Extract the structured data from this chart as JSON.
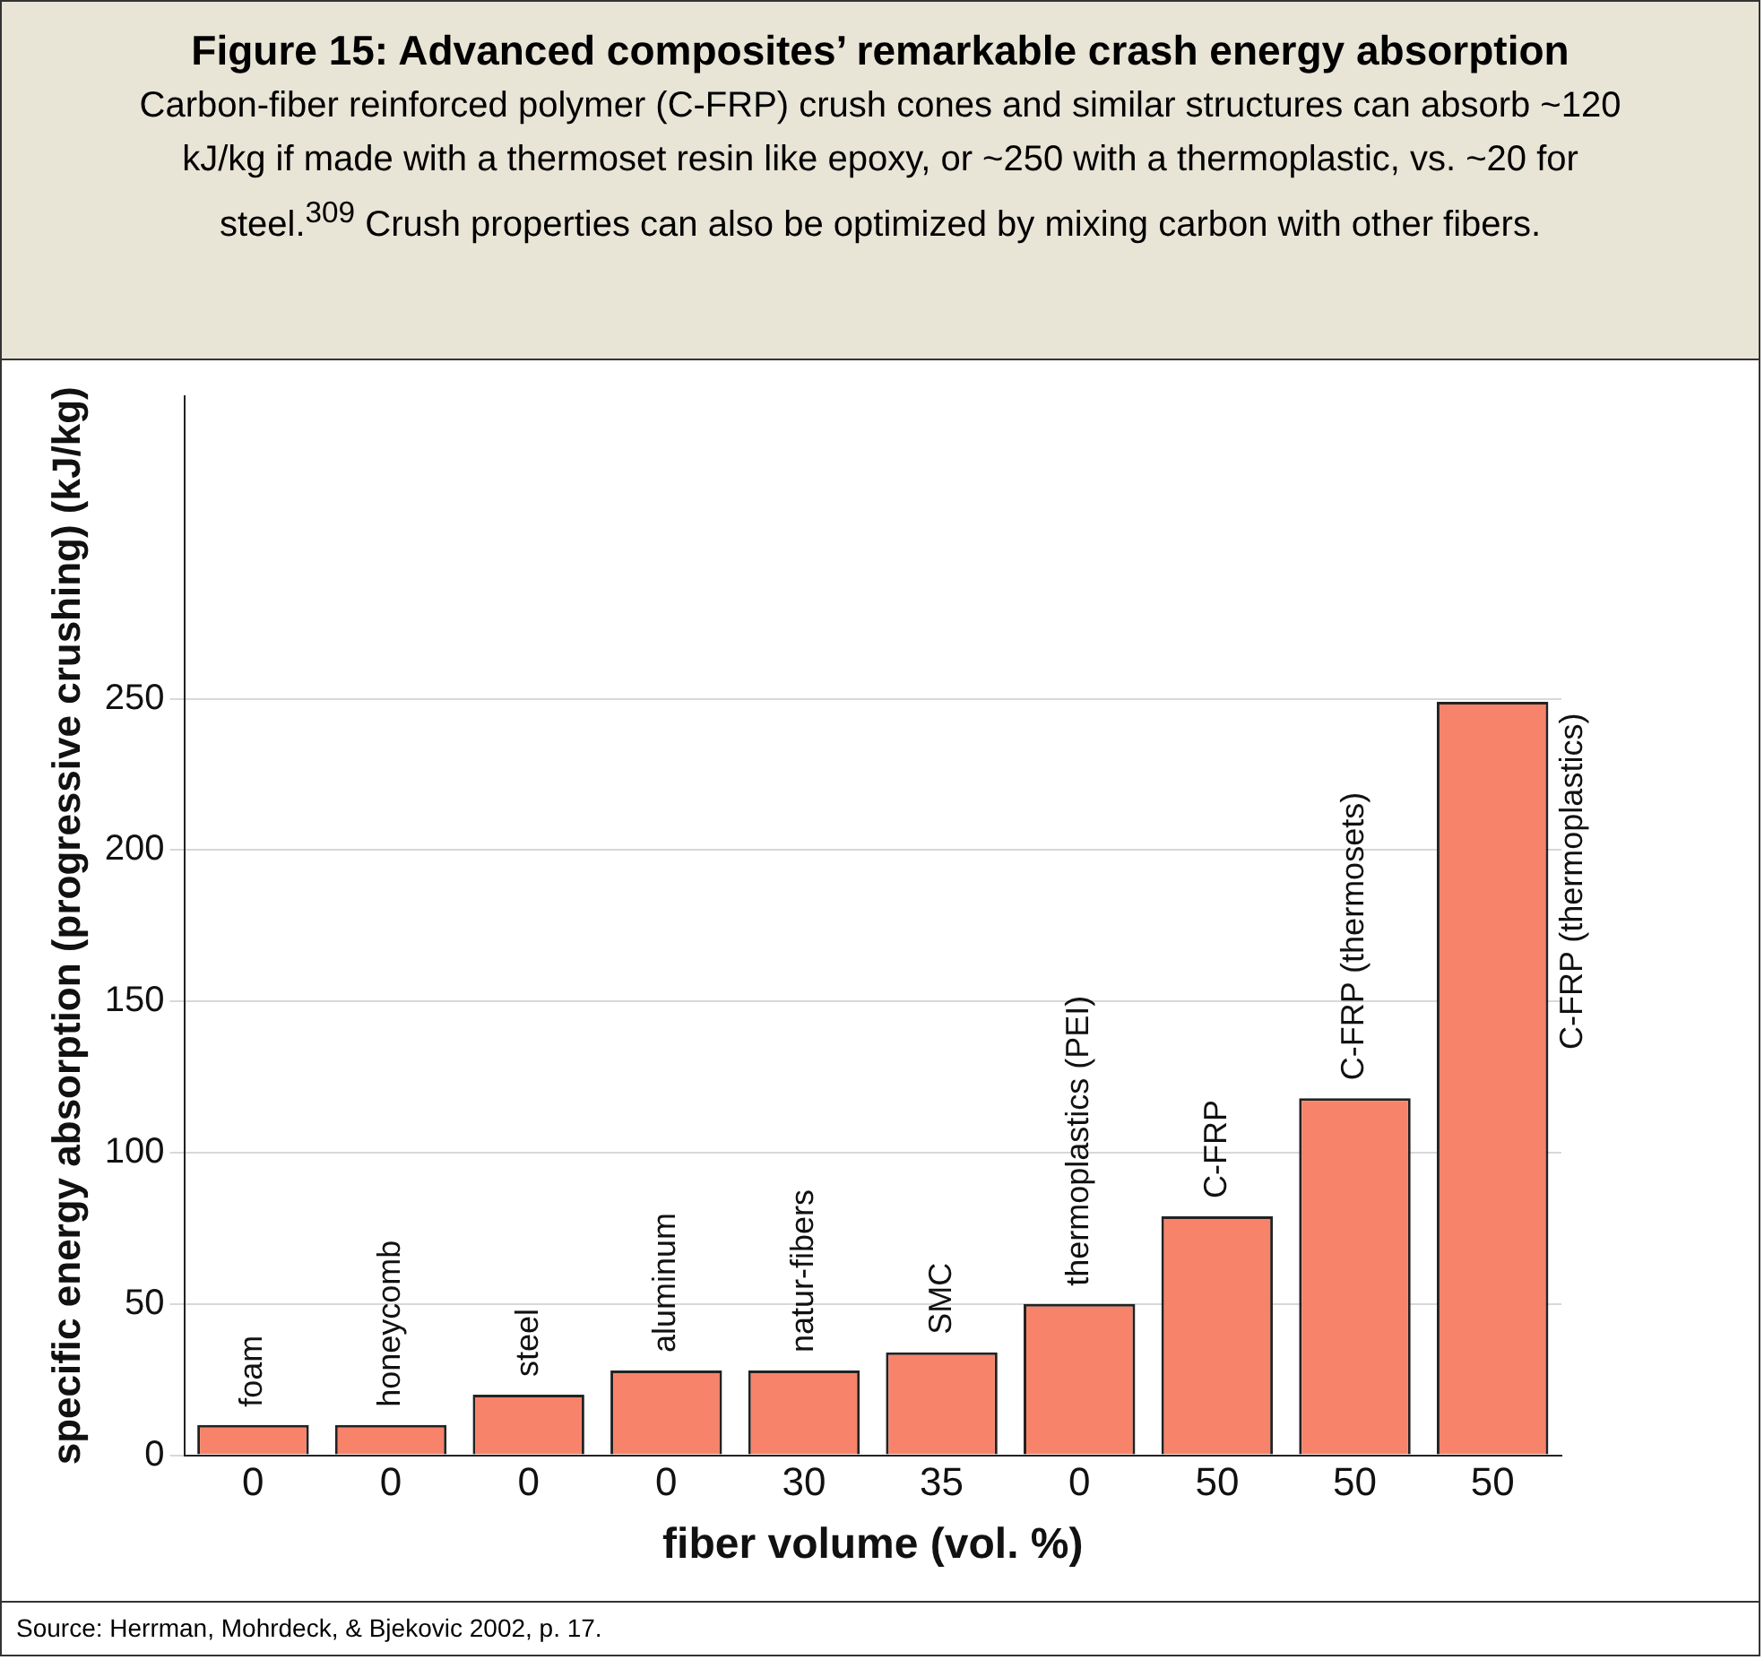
{
  "chart_data": {
    "type": "bar",
    "title": "Figure 15: Advanced composites’ remarkable crash energy absorption",
    "subtitle": "Carbon-fiber reinforced polymer (C-FRP) crush cones and similar structures can absorb ~120 kJ/kg if made with a thermoset resin like epoxy, or ~250 with a thermoplastic, vs. ~20 for steel.$^{309}$ Crush properties can also be optimized by mixing carbon with other fibers.",
    "xlabel": "fiber volume (vol. %)",
    "ylabel": "specific energy absorption (progressive crushing) (kJ/kg)",
    "categories": [
      "0",
      "0",
      "0",
      "0",
      "30",
      "35",
      "0",
      "50",
      "50",
      "50"
    ],
    "values": [
      10,
      10,
      20,
      28,
      28,
      34,
      50,
      79,
      118,
      249
    ],
    "value_labels": [
      "foam",
      "honeycomb",
      "steel",
      "aluminum",
      "natur-fibers",
      "SMC",
      "thermoplastics (PEI)",
      "C-FRP",
      "C-FRP (thermosets)",
      "C-FRP (thermoplastics)"
    ],
    "color": "#f7836a",
    "ylim": [
      0,
      350
    ],
    "yticks": [
      0,
      50,
      100,
      150,
      200,
      250
    ],
    "grid": "y",
    "annotations": [
      "Source: Herrman, Mohrdeck, & Bjekovic 2002, p. 17."
    ]
  }
}
